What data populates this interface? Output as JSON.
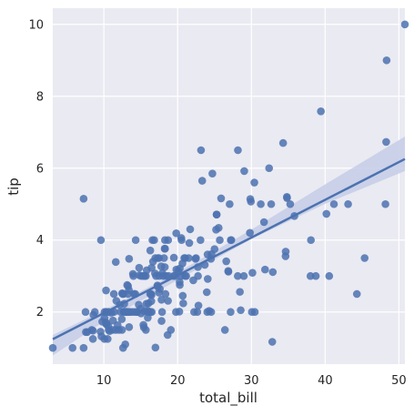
{
  "chart_data": {
    "type": "scatter",
    "title": "",
    "xlabel": "total_bill",
    "ylabel": "tip",
    "xlim": [
      3.07,
      50.81
    ],
    "ylim": [
      0.55,
      10.45
    ],
    "xticks": [
      10,
      20,
      30,
      40,
      50
    ],
    "yticks": [
      2,
      4,
      6,
      8,
      10
    ],
    "grid": true,
    "colors": {
      "background": "#eaeaf2",
      "grid": "#ffffff",
      "points": "#4c72b0",
      "regression_line": "#4c72b0",
      "confidence_band": "#c4cde6"
    },
    "regression": {
      "slope": 0.105,
      "intercept": 0.92,
      "ci": [
        [
          3.07,
          0.79,
          1.36
        ],
        [
          10,
          1.73,
          2.05
        ],
        [
          20,
          2.89,
          3.1
        ],
        [
          30,
          4.03,
          4.29
        ],
        [
          40,
          5.01,
          5.55
        ],
        [
          50.81,
          5.92,
          6.88
        ]
      ]
    },
    "points": [
      [
        3.07,
        1.0
      ],
      [
        5.75,
        1.0
      ],
      [
        7.25,
        1.0
      ],
      [
        7.25,
        5.15
      ],
      [
        7.51,
        2.0
      ],
      [
        7.56,
        1.44
      ],
      [
        7.74,
        1.44
      ],
      [
        8.35,
        1.5
      ],
      [
        8.51,
        1.25
      ],
      [
        8.52,
        1.48
      ],
      [
        8.58,
        1.92
      ],
      [
        8.77,
        2.0
      ],
      [
        9.55,
        1.45
      ],
      [
        9.6,
        4.0
      ],
      [
        9.68,
        1.32
      ],
      [
        9.78,
        1.73
      ],
      [
        10.07,
        1.25
      ],
      [
        10.07,
        1.83
      ],
      [
        10.09,
        2.0
      ],
      [
        10.27,
        1.71
      ],
      [
        10.29,
        2.6
      ],
      [
        10.33,
        1.67
      ],
      [
        10.33,
        2.0
      ],
      [
        10.34,
        1.66
      ],
      [
        10.34,
        2.0
      ],
      [
        10.51,
        1.25
      ],
      [
        10.59,
        1.61
      ],
      [
        10.63,
        2.0
      ],
      [
        10.65,
        1.5
      ],
      [
        10.77,
        1.47
      ],
      [
        11.02,
        1.98
      ],
      [
        11.17,
        1.5
      ],
      [
        11.24,
        1.76
      ],
      [
        11.35,
        2.5
      ],
      [
        11.38,
        2.0
      ],
      [
        11.59,
        1.5
      ],
      [
        11.61,
        3.39
      ],
      [
        11.69,
        2.31
      ],
      [
        11.87,
        1.63
      ],
      [
        12.03,
        1.5
      ],
      [
        12.16,
        2.2
      ],
      [
        12.26,
        2.0
      ],
      [
        12.43,
        1.8
      ],
      [
        12.46,
        1.5
      ],
      [
        12.48,
        2.52
      ],
      [
        12.54,
        2.5
      ],
      [
        12.6,
        1.0
      ],
      [
        12.66,
        2.5
      ],
      [
        12.69,
        2.0
      ],
      [
        12.74,
        2.01
      ],
      [
        12.76,
        2.23
      ],
      [
        12.9,
        1.1
      ],
      [
        13.0,
        2.0
      ],
      [
        13.03,
        2.0
      ],
      [
        13.13,
        2.0
      ],
      [
        13.16,
        2.75
      ],
      [
        13.27,
        2.5
      ],
      [
        13.28,
        2.72
      ],
      [
        13.37,
        2.0
      ],
      [
        13.39,
        2.61
      ],
      [
        13.42,
        1.58
      ],
      [
        13.42,
        3.48
      ],
      [
        13.51,
        2.0
      ],
      [
        13.81,
        2.0
      ],
      [
        13.94,
        3.06
      ],
      [
        14.0,
        3.0
      ],
      [
        14.07,
        2.5
      ],
      [
        14.15,
        2.0
      ],
      [
        14.26,
        2.5
      ],
      [
        14.31,
        4.0
      ],
      [
        14.48,
        2.0
      ],
      [
        14.52,
        2.0
      ],
      [
        14.73,
        2.2
      ],
      [
        14.78,
        3.23
      ],
      [
        14.83,
        3.02
      ],
      [
        15.01,
        2.09
      ],
      [
        15.04,
        1.96
      ],
      [
        15.06,
        3.0
      ],
      [
        15.36,
        1.64
      ],
      [
        15.38,
        3.0
      ],
      [
        15.42,
        1.57
      ],
      [
        15.48,
        2.02
      ],
      [
        15.53,
        3.0
      ],
      [
        15.69,
        1.5
      ],
      [
        15.69,
        3.0
      ],
      [
        15.77,
        2.23
      ],
      [
        15.81,
        3.16
      ],
      [
        15.95,
        1.84
      ],
      [
        15.98,
        2.03
      ],
      [
        16.0,
        2.0
      ],
      [
        16.04,
        2.24
      ],
      [
        16.27,
        2.5
      ],
      [
        16.29,
        3.71
      ],
      [
        16.31,
        2.0
      ],
      [
        16.4,
        2.5
      ],
      [
        16.43,
        2.3
      ],
      [
        16.45,
        2.47
      ],
      [
        16.47,
        3.23
      ],
      [
        16.49,
        2.0
      ],
      [
        16.58,
        4.0
      ],
      [
        16.66,
        3.4
      ],
      [
        16.82,
        4.0
      ],
      [
        16.93,
        3.07
      ],
      [
        16.97,
        3.5
      ],
      [
        16.99,
        1.01
      ],
      [
        17.07,
        3.0
      ],
      [
        17.26,
        2.74
      ],
      [
        17.29,
        2.71
      ],
      [
        17.31,
        3.5
      ],
      [
        17.46,
        2.54
      ],
      [
        17.47,
        3.5
      ],
      [
        17.51,
        3.0
      ],
      [
        17.59,
        2.64
      ],
      [
        17.78,
        3.27
      ],
      [
        17.81,
        2.34
      ],
      [
        17.82,
        1.75
      ],
      [
        17.89,
        2.0
      ],
      [
        17.92,
        3.08
      ],
      [
        18.04,
        3.0
      ],
      [
        18.15,
        3.5
      ],
      [
        18.24,
        3.76
      ],
      [
        18.26,
        3.25
      ],
      [
        18.28,
        4.0
      ],
      [
        18.29,
        3.76
      ],
      [
        18.35,
        2.5
      ],
      [
        18.43,
        3.0
      ],
      [
        18.64,
        1.36
      ],
      [
        18.69,
        2.31
      ],
      [
        18.71,
        4.0
      ],
      [
        18.78,
        3.0
      ],
      [
        19.08,
        1.5
      ],
      [
        19.44,
        3.0
      ],
      [
        19.49,
        3.51
      ],
      [
        19.65,
        3.0
      ],
      [
        19.77,
        2.0
      ],
      [
        19.81,
        4.19
      ],
      [
        19.82,
        3.18
      ],
      [
        20.08,
        3.15
      ],
      [
        20.23,
        2.01
      ],
      [
        20.27,
        2.83
      ],
      [
        20.29,
        2.75
      ],
      [
        20.29,
        3.21
      ],
      [
        20.45,
        3.0
      ],
      [
        20.49,
        4.06
      ],
      [
        20.53,
        4.0
      ],
      [
        20.65,
        3.35
      ],
      [
        20.69,
        2.45
      ],
      [
        20.76,
        2.24
      ],
      [
        20.9,
        3.5
      ],
      [
        21.01,
        3.0
      ],
      [
        21.01,
        3.5
      ],
      [
        21.16,
        3.0
      ],
      [
        21.5,
        3.5
      ],
      [
        21.58,
        3.92
      ],
      [
        21.7,
        4.3
      ],
      [
        22.12,
        2.88
      ],
      [
        22.23,
        2.0
      ],
      [
        22.42,
        3.48
      ],
      [
        22.49,
        3.5
      ],
      [
        22.67,
        2.0
      ],
      [
        22.75,
        3.25
      ],
      [
        22.76,
        3.0
      ],
      [
        22.82,
        2.18
      ],
      [
        23.1,
        4.0
      ],
      [
        23.17,
        6.5
      ],
      [
        23.33,
        5.65
      ],
      [
        23.68,
        3.31
      ],
      [
        23.95,
        2.55
      ],
      [
        24.01,
        2.0
      ],
      [
        24.06,
        3.6
      ],
      [
        24.08,
        2.92
      ],
      [
        24.27,
        2.03
      ],
      [
        24.52,
        3.48
      ],
      [
        24.55,
        2.0
      ],
      [
        24.59,
        3.61
      ],
      [
        24.71,
        5.85
      ],
      [
        25.0,
        3.75
      ],
      [
        25.21,
        4.29
      ],
      [
        25.28,
        4.71
      ],
      [
        25.29,
        4.71
      ],
      [
        25.56,
        4.34
      ],
      [
        25.71,
        4.0
      ],
      [
        25.89,
        5.16
      ],
      [
        26.41,
        1.5
      ],
      [
        26.59,
        3.41
      ],
      [
        26.86,
        3.14
      ],
      [
        26.88,
        3.12
      ],
      [
        27.05,
        5.0
      ],
      [
        27.18,
        2.0
      ],
      [
        27.2,
        4.0
      ],
      [
        27.28,
        4.0
      ],
      [
        28.15,
        3.0
      ],
      [
        28.17,
        6.5
      ],
      [
        28.44,
        2.56
      ],
      [
        28.55,
        2.05
      ],
      [
        28.97,
        3.0
      ],
      [
        29.03,
        5.92
      ],
      [
        29.8,
        4.2
      ],
      [
        29.85,
        5.14
      ],
      [
        29.93,
        5.07
      ],
      [
        30.06,
        2.0
      ],
      [
        30.14,
        3.09
      ],
      [
        30.4,
        5.6
      ],
      [
        30.46,
        2.0
      ],
      [
        31.27,
        5.0
      ],
      [
        31.71,
        4.5
      ],
      [
        31.85,
        3.18
      ],
      [
        32.4,
        6.0
      ],
      [
        32.68,
        5.0
      ],
      [
        32.83,
        1.17
      ],
      [
        32.9,
        3.11
      ],
      [
        34.3,
        6.7
      ],
      [
        34.63,
        3.55
      ],
      [
        34.65,
        3.68
      ],
      [
        34.81,
        5.2
      ],
      [
        34.83,
        5.17
      ],
      [
        35.26,
        5.0
      ],
      [
        35.83,
        4.67
      ],
      [
        38.01,
        3.0
      ],
      [
        38.07,
        4.0
      ],
      [
        38.73,
        3.0
      ],
      [
        39.42,
        7.58
      ],
      [
        40.17,
        4.73
      ],
      [
        40.55,
        3.0
      ],
      [
        41.19,
        5.0
      ],
      [
        43.11,
        5.0
      ],
      [
        44.3,
        2.5
      ],
      [
        45.35,
        3.5
      ],
      [
        48.17,
        5.0
      ],
      [
        48.27,
        6.73
      ],
      [
        48.33,
        9.0
      ],
      [
        50.81,
        10.0
      ]
    ]
  }
}
